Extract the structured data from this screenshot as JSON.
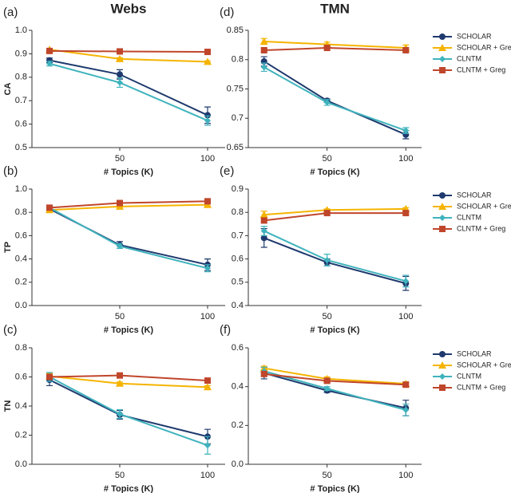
{
  "chart_data": [
    {
      "type": "line",
      "panel": "(a)",
      "title": "Webs",
      "ylabel": "CA",
      "xlabel": "# Topics (K)",
      "x": [
        10,
        50,
        100
      ],
      "xlim": [
        0,
        110
      ],
      "xticks": [
        50,
        100
      ],
      "ylim": [
        0.5,
        1.0
      ],
      "yticks": [
        0.5,
        0.6,
        0.7,
        0.8,
        0.9,
        {
          "value": 1.0,
          "label": "1.0"
        }
      ],
      "legend": false,
      "series": [
        {
          "name": "SCHOLAR",
          "color": "#1f3a6e",
          "marker": "circle",
          "values": [
            0.872,
            0.812,
            0.638
          ],
          "errors": [
            0.01,
            0.02,
            0.035
          ]
        },
        {
          "name": "SCHOLAR + Greg",
          "color": "#f5b400",
          "marker": "triangle",
          "values": [
            0.918,
            0.878,
            0.866
          ],
          "errors": [
            0.005,
            0.005,
            0.004
          ]
        },
        {
          "name": "CLNTM",
          "color": "#3fb3bd",
          "marker": "diamond",
          "values": [
            0.858,
            0.777,
            0.615
          ],
          "errors": [
            0.01,
            0.02,
            0.02
          ]
        },
        {
          "name": "CLNTM + Greg",
          "color": "#c0462b",
          "marker": "square",
          "values": [
            0.912,
            0.91,
            0.908
          ],
          "errors": [
            0.004,
            0.004,
            0.004
          ]
        }
      ]
    },
    {
      "type": "line",
      "panel": "(b)",
      "ylabel": "TP",
      "xlabel": "# Topics (K)",
      "x": [
        10,
        50,
        100
      ],
      "xlim": [
        0,
        110
      ],
      "xticks": [
        50,
        100
      ],
      "ylim": [
        0,
        1.0
      ],
      "yticks": [
        {
          "value": 0,
          "label": "0.0"
        },
        0.2,
        0.4,
        0.6,
        0.8,
        {
          "value": 1.0,
          "label": "1.0"
        }
      ],
      "legend": false,
      "series": [
        {
          "name": "SCHOLAR",
          "color": "#1f3a6e",
          "marker": "circle",
          "values": [
            0.83,
            0.52,
            0.35
          ],
          "errors": [
            0.03,
            0.03,
            0.05
          ]
        },
        {
          "name": "SCHOLAR + Greg",
          "color": "#f5b400",
          "marker": "triangle",
          "values": [
            0.82,
            0.85,
            0.865
          ],
          "errors": [
            0.01,
            0.01,
            0.01
          ]
        },
        {
          "name": "CLNTM",
          "color": "#3fb3bd",
          "marker": "diamond",
          "values": [
            0.84,
            0.51,
            0.32
          ],
          "errors": [
            0.02,
            0.02,
            0.03
          ]
        },
        {
          "name": "CLNTM + Greg",
          "color": "#c0462b",
          "marker": "square",
          "values": [
            0.84,
            0.88,
            0.895
          ],
          "errors": [
            0.01,
            0.01,
            0.01
          ]
        }
      ]
    },
    {
      "type": "line",
      "panel": "(c)",
      "ylabel": "TN",
      "xlabel": "# Topics (K)",
      "x": [
        10,
        50,
        100
      ],
      "xlim": [
        0,
        110
      ],
      "xticks": [
        50,
        100
      ],
      "ylim": [
        0,
        0.8
      ],
      "yticks": [
        {
          "value": 0,
          "label": "0.0"
        },
        0.2,
        0.4,
        0.6,
        0.8
      ],
      "legend": false,
      "series": [
        {
          "name": "SCHOLAR",
          "color": "#1f3a6e",
          "marker": "circle",
          "values": [
            0.58,
            0.34,
            0.19
          ],
          "errors": [
            0.04,
            0.03,
            0.05
          ]
        },
        {
          "name": "SCHOLAR + Greg",
          "color": "#f5b400",
          "marker": "triangle",
          "values": [
            0.605,
            0.555,
            0.53
          ],
          "errors": [
            0.02,
            0.01,
            0.01
          ]
        },
        {
          "name": "CLNTM",
          "color": "#3fb3bd",
          "marker": "diamond",
          "values": [
            0.6,
            0.345,
            0.13
          ],
          "errors": [
            0.03,
            0.03,
            0.06
          ]
        },
        {
          "name": "CLNTM + Greg",
          "color": "#c0462b",
          "marker": "square",
          "values": [
            0.6,
            0.61,
            0.575
          ],
          "errors": [
            0.01,
            0.01,
            0.01
          ]
        }
      ]
    },
    {
      "type": "line",
      "panel": "(d)",
      "title": "TMN",
      "ylabel": "",
      "xlabel": "# Topics (K)",
      "x": [
        10,
        50,
        100
      ],
      "xlim": [
        0,
        110
      ],
      "xticks": [
        50,
        100
      ],
      "ylim": [
        0.65,
        0.85
      ],
      "yticks": [
        0.65,
        0.7,
        0.75,
        0.8,
        0.85
      ],
      "legend": true,
      "series": [
        {
          "name": "SCHOLAR",
          "color": "#1f3a6e",
          "marker": "circle",
          "values": [
            0.797,
            0.73,
            0.672
          ],
          "errors": [
            0.008,
            0.003,
            0.007
          ]
        },
        {
          "name": "SCHOLAR + Greg",
          "color": "#f5b400",
          "marker": "triangle",
          "values": [
            0.831,
            0.826,
            0.82
          ],
          "errors": [
            0.005,
            0.004,
            0.005
          ]
        },
        {
          "name": "CLNTM",
          "color": "#3fb3bd",
          "marker": "diamond",
          "values": [
            0.787,
            0.727,
            0.679
          ],
          "errors": [
            0.007,
            0.005,
            0.005
          ]
        },
        {
          "name": "CLNTM + Greg",
          "color": "#c0462b",
          "marker": "square",
          "values": [
            0.816,
            0.82,
            0.816
          ],
          "errors": [
            0.003,
            0.003,
            0.003
          ]
        }
      ]
    },
    {
      "type": "line",
      "panel": "(e)",
      "ylabel": "",
      "xlabel": "# Topics (K)",
      "x": [
        10,
        50,
        100
      ],
      "xlim": [
        0,
        110
      ],
      "xticks": [
        50,
        100
      ],
      "ylim": [
        0.4,
        0.9
      ],
      "yticks": [
        0.4,
        0.5,
        0.6,
        0.7,
        0.8,
        0.9
      ],
      "legend": true,
      "series": [
        {
          "name": "SCHOLAR",
          "color": "#1f3a6e",
          "marker": "circle",
          "values": [
            0.69,
            0.585,
            0.495
          ],
          "errors": [
            0.04,
            0.015,
            0.03
          ]
        },
        {
          "name": "SCHOLAR + Greg",
          "color": "#f5b400",
          "marker": "triangle",
          "values": [
            0.79,
            0.81,
            0.815
          ],
          "errors": [
            0.015,
            0.005,
            0.005
          ]
        },
        {
          "name": "CLNTM",
          "color": "#3fb3bd",
          "marker": "diamond",
          "values": [
            0.72,
            0.595,
            0.505
          ],
          "errors": [
            0.02,
            0.025,
            0.025
          ]
        },
        {
          "name": "CLNTM + Greg",
          "color": "#c0462b",
          "marker": "square",
          "values": [
            0.765,
            0.797,
            0.797
          ],
          "errors": [
            0.01,
            0.005,
            0.005
          ]
        }
      ]
    },
    {
      "type": "line",
      "panel": "(f)",
      "ylabel": "",
      "xlabel": "# Topics (K)",
      "x": [
        10,
        50,
        100
      ],
      "xlim": [
        0,
        110
      ],
      "xticks": [
        50,
        100
      ],
      "ylim": [
        0,
        0.6
      ],
      "yticks": [
        {
          "value": 0,
          "label": "0.0"
        },
        0.2,
        0.4,
        0.6
      ],
      "legend": true,
      "series": [
        {
          "name": "SCHOLAR",
          "color": "#1f3a6e",
          "marker": "circle",
          "values": [
            0.47,
            0.38,
            0.29
          ],
          "errors": [
            0.03,
            0.01,
            0.04
          ]
        },
        {
          "name": "SCHOLAR + Greg",
          "color": "#f5b400",
          "marker": "triangle",
          "values": [
            0.495,
            0.44,
            0.415
          ],
          "errors": [
            0.01,
            0.01,
            0.01
          ]
        },
        {
          "name": "CLNTM",
          "color": "#3fb3bd",
          "marker": "diamond",
          "values": [
            0.48,
            0.39,
            0.28
          ],
          "errors": [
            0.02,
            0.01,
            0.03
          ]
        },
        {
          "name": "CLNTM + Greg",
          "color": "#c0462b",
          "marker": "square",
          "values": [
            0.465,
            0.43,
            0.41
          ],
          "errors": [
            0.01,
            0.01,
            0.01
          ]
        }
      ]
    }
  ]
}
